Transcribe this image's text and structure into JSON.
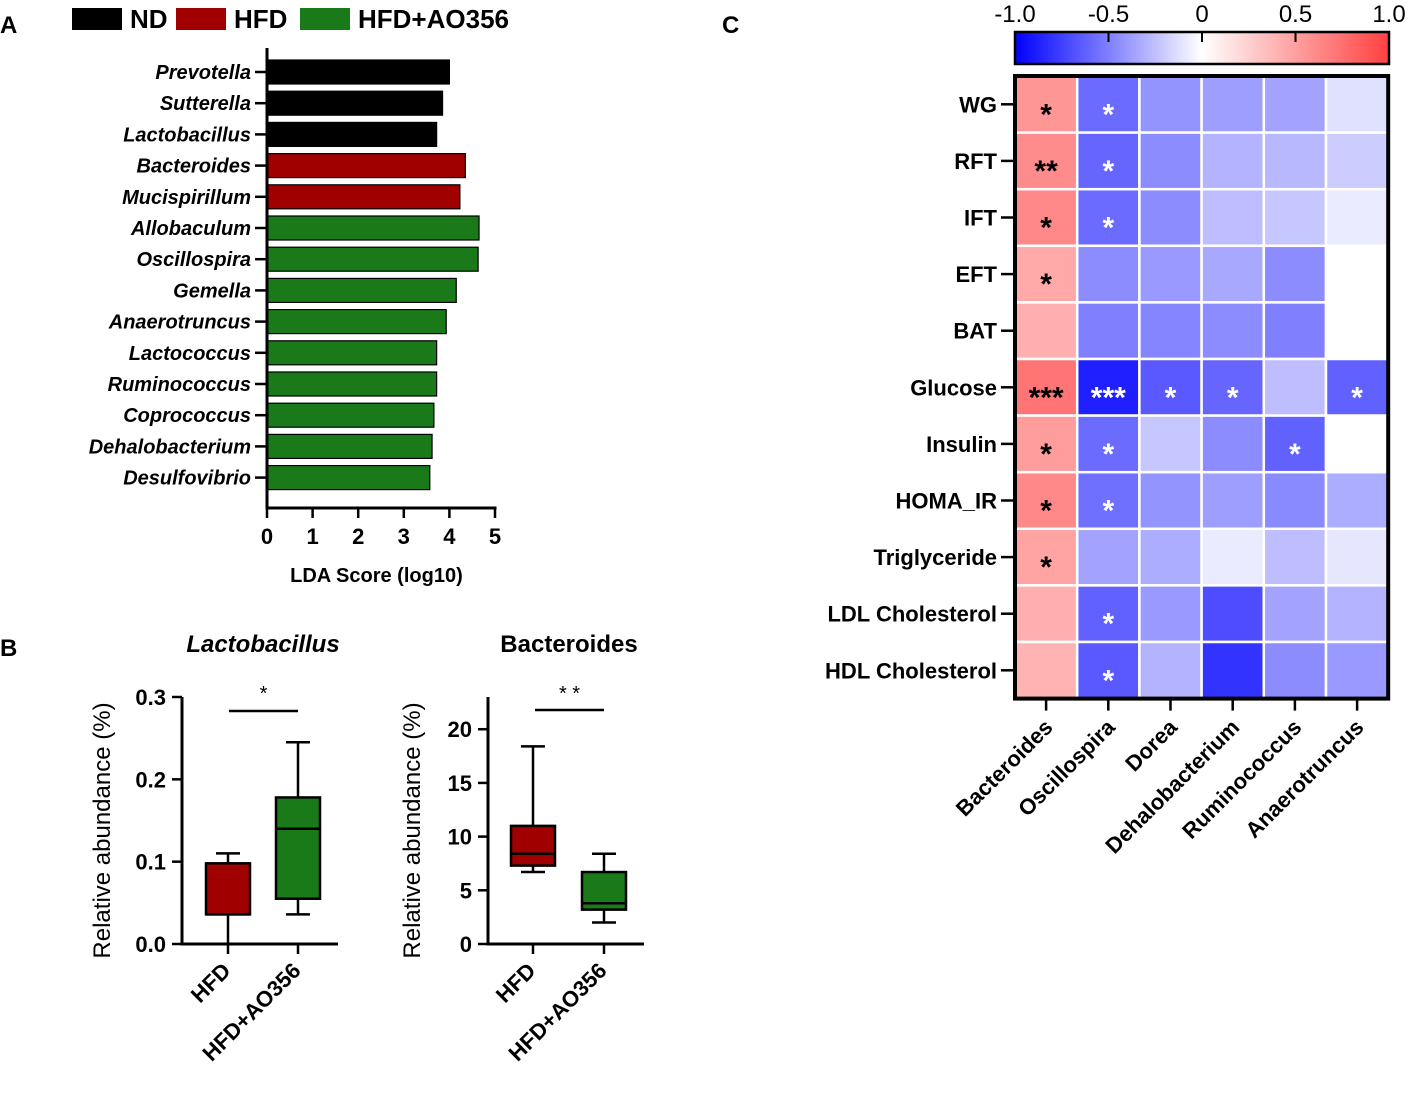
{
  "panels": {
    "a": "A",
    "b": "B",
    "c": "C"
  },
  "colors": {
    "ND": "#000000",
    "HFD": "#a00000",
    "HFD+AO356": "#1a7a1a"
  },
  "chart_data": [
    {
      "type": "bar",
      "orientation": "horizontal",
      "title": "",
      "legend": [
        {
          "name": "ND",
          "color": "#000000"
        },
        {
          "name": "HFD",
          "color": "#a00000"
        },
        {
          "name": "HFD+AO356",
          "color": "#1a7a1a"
        }
      ],
      "categories": [
        "Prevotella",
        "Sutterella",
        "Lactobacillus",
        "Bacteroides",
        "Mucispirillum",
        "Allobaculum",
        "Oscillospira",
        "Gemella",
        "Anaerotruncus",
        "Lactococcus",
        "Ruminococcus",
        "Coprococcus",
        "Dehalobacterium",
        "Desulfovibrio"
      ],
      "groups": [
        "ND",
        "ND",
        "ND",
        "HFD",
        "HFD",
        "HFD+AO356",
        "HFD+AO356",
        "HFD+AO356",
        "HFD+AO356",
        "HFD+AO356",
        "HFD+AO356",
        "HFD+AO356",
        "HFD+AO356",
        "HFD+AO356"
      ],
      "values": [
        4.0,
        3.85,
        3.72,
        4.35,
        4.23,
        4.65,
        4.63,
        4.15,
        3.93,
        3.72,
        3.72,
        3.66,
        3.62,
        3.57
      ],
      "xlabel": "LDA Score (log10)",
      "xlim": [
        0,
        5
      ],
      "xticks": [
        "0",
        "1",
        "2",
        "3",
        "4",
        "5"
      ]
    },
    {
      "type": "box",
      "title": "Lactobacillus",
      "ylabel": "Relative abundance (%)",
      "ylim": [
        0,
        0.3
      ],
      "yticks": [
        "0.0",
        "0.1",
        "0.2",
        "0.3"
      ],
      "categories": [
        "HFD",
        "HFD+AO356"
      ],
      "boxes": [
        {
          "name": "HFD",
          "min": 0.0,
          "q1": 0.036,
          "median": 0.036,
          "q3": 0.098,
          "max": 0.11,
          "color": "#a00000"
        },
        {
          "name": "HFD+AO356",
          "min": 0.036,
          "q1": 0.055,
          "median": 0.14,
          "q3": 0.178,
          "max": 0.245,
          "color": "#1a7a1a"
        }
      ],
      "significance": "*"
    },
    {
      "type": "box",
      "title": "Bacteroides",
      "ylabel": "Relative abundance (%)",
      "ylim": [
        0,
        23
      ],
      "yticks": [
        "0",
        "5",
        "10",
        "15",
        "20"
      ],
      "categories": [
        "HFD",
        "HFD+AO356"
      ],
      "boxes": [
        {
          "name": "HFD",
          "min": 6.7,
          "q1": 7.3,
          "median": 8.4,
          "q3": 11.0,
          "max": 18.4,
          "color": "#a00000"
        },
        {
          "name": "HFD+AO356",
          "min": 2.0,
          "q1": 3.2,
          "median": 3.8,
          "q3": 6.7,
          "max": 8.4,
          "color": "#1a7a1a"
        }
      ],
      "significance": "* *"
    },
    {
      "type": "heatmap",
      "title": "",
      "rows": [
        "WG",
        "RFT",
        "IFT",
        "EFT",
        "BAT",
        "Glucose",
        "Insulin",
        "HOMA_IR",
        "Triglyceride",
        "LDL Cholesterol",
        "HDL Cholesterol"
      ],
      "columns": [
        "Bacteroides",
        "Oscillospira",
        "Dorea",
        "Dehalobacterium",
        "Ruminococcus",
        "Anaerotruncus"
      ],
      "values": [
        [
          0.55,
          -0.58,
          -0.42,
          -0.38,
          -0.36,
          -0.12
        ],
        [
          0.6,
          -0.6,
          -0.45,
          -0.3,
          -0.28,
          -0.2
        ],
        [
          0.62,
          -0.58,
          -0.45,
          -0.26,
          -0.22,
          -0.08
        ],
        [
          0.45,
          -0.45,
          -0.4,
          -0.34,
          -0.45,
          0.0
        ],
        [
          0.42,
          -0.5,
          -0.48,
          -0.45,
          -0.5,
          0.0
        ],
        [
          0.72,
          -0.88,
          -0.65,
          -0.6,
          -0.26,
          -0.62
        ],
        [
          0.52,
          -0.58,
          -0.22,
          -0.45,
          -0.62,
          0.0
        ],
        [
          0.62,
          -0.56,
          -0.42,
          -0.38,
          -0.46,
          -0.32
        ],
        [
          0.48,
          -0.36,
          -0.32,
          -0.08,
          -0.26,
          -0.1
        ],
        [
          0.42,
          -0.62,
          -0.4,
          -0.7,
          -0.36,
          -0.3
        ],
        [
          0.4,
          -0.65,
          -0.3,
          -0.8,
          -0.45,
          -0.4
        ]
      ],
      "stars": [
        [
          "*",
          "*",
          "",
          "",
          "",
          ""
        ],
        [
          "**",
          "*",
          "",
          "",
          "",
          ""
        ],
        [
          "*",
          "*",
          "",
          "",
          "",
          ""
        ],
        [
          "*",
          "",
          "",
          "",
          "",
          ""
        ],
        [
          "",
          "",
          "",
          "",
          "",
          ""
        ],
        [
          "***",
          "***",
          "*",
          "*",
          "",
          "*"
        ],
        [
          "*",
          "*",
          "",
          "",
          "*",
          ""
        ],
        [
          "*",
          "*",
          "",
          "",
          "",
          ""
        ],
        [
          "*",
          "",
          "",
          "",
          "",
          ""
        ],
        [
          "",
          "*",
          "",
          "",
          "",
          ""
        ],
        [
          "",
          "*",
          "",
          "",
          "",
          ""
        ]
      ],
      "colorbar": {
        "range": [
          -1.0,
          1.0
        ],
        "ticks": [
          "-1.0",
          "-0.5",
          "0",
          "0.5",
          "1.0"
        ],
        "low_color": "#0000ff",
        "mid_color": "#ffffff",
        "high_color": "#ff4040"
      }
    }
  ]
}
